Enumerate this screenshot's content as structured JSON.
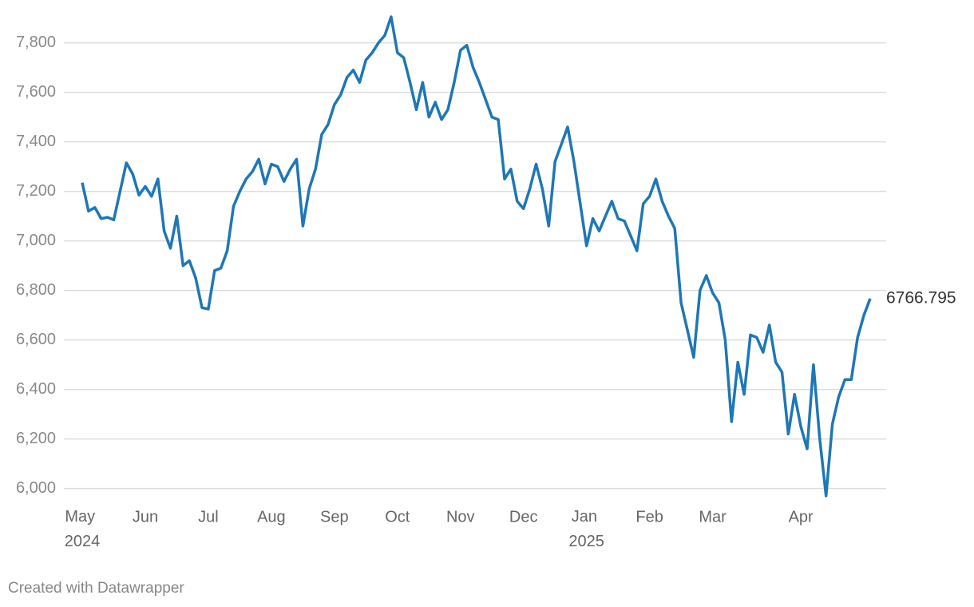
{
  "chart_data": {
    "type": "line",
    "categories": [
      "May 2024",
      null,
      null,
      null,
      null,
      null,
      null,
      null,
      null,
      null,
      "Jun",
      null,
      null,
      null,
      null,
      null,
      null,
      null,
      null,
      null,
      "Jul",
      null,
      null,
      null,
      null,
      null,
      null,
      null,
      null,
      null,
      "Aug",
      null,
      null,
      null,
      null,
      null,
      null,
      null,
      null,
      null,
      "Sep",
      null,
      null,
      null,
      null,
      null,
      null,
      null,
      null,
      null,
      "Oct",
      null,
      null,
      null,
      null,
      null,
      null,
      null,
      null,
      null,
      "Nov",
      null,
      null,
      null,
      null,
      null,
      null,
      null,
      null,
      null,
      "Dec",
      null,
      null,
      null,
      null,
      null,
      null,
      null,
      null,
      null,
      "Jan 2025",
      null,
      null,
      null,
      null,
      null,
      null,
      null,
      null,
      null,
      "Feb",
      null,
      null,
      null,
      null,
      null,
      null,
      null,
      null,
      null,
      "Mar",
      null,
      null,
      null,
      null,
      null,
      null,
      null,
      null,
      null,
      null,
      null,
      null,
      null,
      "Apr",
      null,
      null,
      null,
      null,
      null,
      null,
      null,
      null,
      null,
      null,
      null
    ],
    "series": [
      {
        "color": "#1f77b4",
        "values": [
          7235,
          7120,
          7135,
          7090,
          7095,
          7085,
          7200,
          7315,
          7270,
          7185,
          7220,
          7180,
          7250,
          7040,
          6970,
          7100,
          6900,
          6920,
          6850,
          6730,
          6725,
          6880,
          6890,
          6960,
          7140,
          7200,
          7250,
          7280,
          7330,
          7230,
          7310,
          7300,
          7240,
          7290,
          7330,
          7060,
          7210,
          7290,
          7430,
          7470,
          7550,
          7590,
          7660,
          7690,
          7640,
          7730,
          7760,
          7800,
          7830,
          7905,
          7760,
          7740,
          7640,
          7530,
          7640,
          7500,
          7560,
          7490,
          7530,
          7640,
          7770,
          7790,
          7700,
          7640,
          7570,
          7500,
          7490,
          7250,
          7290,
          7160,
          7130,
          7210,
          7310,
          7210,
          7060,
          7320,
          7390,
          7460,
          7320,
          7150,
          6980,
          7090,
          7040,
          7100,
          7160,
          7090,
          7080,
          7020,
          6960,
          7150,
          7180,
          7250,
          7160,
          7100,
          7050,
          6750,
          6640,
          6530,
          6800,
          6860,
          6790,
          6750,
          6600,
          6270,
          6510,
          6380,
          6620,
          6610,
          6550,
          6660,
          6510,
          6470,
          6220,
          6380,
          6250,
          6160,
          6500,
          6200,
          5970,
          6260,
          6370,
          6440,
          6440,
          6610,
          6700,
          6766.795
        ]
      }
    ],
    "ylim": [
      5960,
      7910
    ],
    "yticks": [
      {
        "value": 6000,
        "label": "6,000"
      },
      {
        "value": 6200,
        "label": "6,200"
      },
      {
        "value": 6400,
        "label": "6,400"
      },
      {
        "value": 6600,
        "label": "6,600"
      },
      {
        "value": 6800,
        "label": "6,800"
      },
      {
        "value": 7000,
        "label": "7,000"
      },
      {
        "value": 7200,
        "label": "7,200"
      },
      {
        "value": 7400,
        "label": "7,400"
      },
      {
        "value": 7600,
        "label": "7,600"
      },
      {
        "value": 7800,
        "label": "7,800"
      }
    ],
    "grid": true,
    "footer": "Created with Datawrapper"
  }
}
